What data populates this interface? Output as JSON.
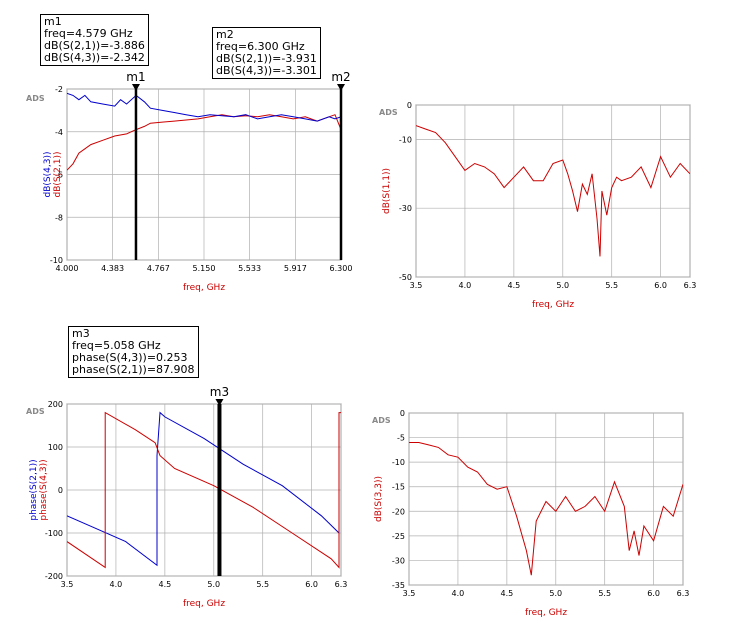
{
  "ads_label": "ADS",
  "colors": {
    "s21": "#cc0000",
    "s43": "#0000cc",
    "s11": "#cc0000",
    "s33": "#cc0000"
  },
  "chart_data": [
    {
      "type": "line",
      "xlabel": "freq, GHz",
      "ylabel_lines": [
        {
          "text": "dB(S(4,3))",
          "color": "#0000cc"
        },
        {
          "text": "dB(S(2,1))",
          "color": "#cc0000"
        }
      ],
      "xlim": [
        4.0,
        6.3
      ],
      "ylim": [
        -10,
        -2
      ],
      "xticks": [
        "4.000",
        "4.383",
        "4.767",
        "5.150",
        "5.533",
        "5.917",
        "6.300"
      ],
      "yticks": [
        "-2",
        "-4",
        "-6",
        "-8",
        "-10"
      ],
      "series": [
        {
          "name": "dB(S(2,1))",
          "x": [
            4.0,
            4.05,
            4.1,
            4.15,
            4.2,
            4.3,
            4.4,
            4.5,
            4.58,
            4.65,
            4.7,
            4.8,
            4.9,
            5.0,
            5.1,
            5.2,
            5.3,
            5.4,
            5.5,
            5.6,
            5.7,
            5.8,
            5.9,
            6.0,
            6.1,
            6.2,
            6.25,
            6.3
          ],
          "y": [
            -5.8,
            -5.5,
            -5.0,
            -4.8,
            -4.6,
            -4.4,
            -4.2,
            -4.1,
            -3.9,
            -3.75,
            -3.6,
            -3.55,
            -3.5,
            -3.45,
            -3.4,
            -3.3,
            -3.2,
            -3.3,
            -3.25,
            -3.3,
            -3.2,
            -3.3,
            -3.4,
            -3.3,
            -3.5,
            -3.3,
            -3.2,
            -3.9
          ]
        },
        {
          "name": "dB(S(4,3))",
          "x": [
            4.0,
            4.05,
            4.1,
            4.15,
            4.2,
            4.3,
            4.4,
            4.45,
            4.5,
            4.58,
            4.65,
            4.7,
            4.8,
            4.9,
            5.0,
            5.1,
            5.2,
            5.3,
            5.4,
            5.5,
            5.6,
            5.7,
            5.8,
            5.9,
            6.0,
            6.1,
            6.2,
            6.25,
            6.3
          ],
          "y": [
            -2.2,
            -2.3,
            -2.5,
            -2.3,
            -2.6,
            -2.7,
            -2.8,
            -2.5,
            -2.7,
            -2.3,
            -2.6,
            -2.9,
            -3.0,
            -3.1,
            -3.2,
            -3.3,
            -3.2,
            -3.25,
            -3.3,
            -3.2,
            -3.4,
            -3.3,
            -3.2,
            -3.3,
            -3.4,
            -3.5,
            -3.3,
            -3.4,
            -3.3
          ]
        }
      ],
      "markers": [
        {
          "name": "m1",
          "x": 4.579,
          "lines": [
            "m1",
            "freq=4.579 GHz",
            "dB(S(2,1))=-3.886",
            "dB(S(4,3))=-2.342"
          ]
        },
        {
          "name": "m2",
          "x": 6.3,
          "lines": [
            "m2",
            "freq=6.300 GHz",
            "dB(S(2,1))=-3.931",
            "dB(S(4,3))=-3.301"
          ]
        }
      ]
    },
    {
      "type": "line",
      "xlabel": "freq, GHz",
      "ylabel_lines": [
        {
          "text": "dB(S(1,1))",
          "color": "#cc0000"
        }
      ],
      "xlim": [
        3.5,
        6.3
      ],
      "ylim": [
        -50,
        0
      ],
      "xticks": [
        "3.5",
        "4.0",
        "4.5",
        "5.0",
        "5.5",
        "6.0",
        "6.3"
      ],
      "yticks": [
        "0",
        "-10",
        "-30",
        "-50"
      ],
      "series": [
        {
          "name": "dB(S(1,1))",
          "x": [
            3.5,
            3.6,
            3.7,
            3.8,
            3.9,
            4.0,
            4.1,
            4.2,
            4.3,
            4.4,
            4.5,
            4.6,
            4.7,
            4.8,
            4.9,
            5.0,
            5.05,
            5.1,
            5.15,
            5.2,
            5.25,
            5.3,
            5.35,
            5.38,
            5.4,
            5.45,
            5.5,
            5.55,
            5.6,
            5.7,
            5.8,
            5.9,
            6.0,
            6.1,
            6.2,
            6.3
          ],
          "y": [
            -6,
            -7,
            -8,
            -11,
            -15,
            -19,
            -17,
            -18,
            -20,
            -24,
            -21,
            -18,
            -22,
            -22,
            -17,
            -16,
            -20,
            -25,
            -31,
            -23,
            -26,
            -20,
            -33,
            -44,
            -25,
            -32,
            -24,
            -21,
            -22,
            -21,
            -18,
            -24,
            -15,
            -21,
            -17,
            -20
          ]
        }
      ],
      "markers": []
    },
    {
      "type": "line",
      "xlabel": "freq, GHz",
      "ylabel_lines": [
        {
          "text": "phase(S(2,1))",
          "color": "#0000cc"
        },
        {
          "text": "phase(S(4,3))",
          "color": "#cc0000"
        }
      ],
      "xlim": [
        3.5,
        6.3
      ],
      "ylim": [
        -200,
        200
      ],
      "xticks": [
        "3.5",
        "4.0",
        "4.5",
        "5.0",
        "5.5",
        "6.0",
        "6.3"
      ],
      "yticks": [
        "200",
        "100",
        "0",
        "-100",
        "-200"
      ],
      "series": [
        {
          "name": "phase(S(2,1))",
          "x": [
            3.5,
            3.8,
            4.1,
            4.42,
            4.42,
            4.45,
            4.5,
            4.9,
            5.3,
            5.7,
            6.1,
            6.28
          ],
          "y": [
            -60,
            -90,
            -120,
            -175,
            80,
            180,
            170,
            120,
            60,
            10,
            -60,
            -100
          ]
        },
        {
          "name": "phase(S(4,3))",
          "x": [
            3.5,
            3.89,
            3.89,
            4.2,
            4.4,
            4.45,
            4.6,
            5.0,
            5.4,
            5.8,
            6.2,
            6.28,
            6.28,
            6.3
          ],
          "y": [
            -120,
            -180,
            180,
            140,
            110,
            80,
            50,
            10,
            -40,
            -100,
            -160,
            -180,
            180,
            180
          ]
        }
      ],
      "markers": [
        {
          "name": "m3",
          "x": 5.058,
          "lines": [
            "m3",
            "freq=5.058 GHz",
            "phase(S(4,3))=0.253",
            "phase(S(2,1))=87.908"
          ]
        }
      ]
    },
    {
      "type": "line",
      "xlabel": "freq, GHz",
      "ylabel_lines": [
        {
          "text": "dB(S(3,3))",
          "color": "#cc0000"
        }
      ],
      "xlim": [
        3.5,
        6.3
      ],
      "ylim": [
        -35,
        0
      ],
      "xticks": [
        "3.5",
        "4.0",
        "4.5",
        "5.0",
        "5.5",
        "6.0",
        "6.3"
      ],
      "yticks": [
        "0",
        "-5",
        "-10",
        "-15",
        "-20",
        "-25",
        "-30",
        "-35"
      ],
      "series": [
        {
          "name": "dB(S(3,3))",
          "x": [
            3.5,
            3.6,
            3.7,
            3.8,
            3.9,
            4.0,
            4.1,
            4.2,
            4.3,
            4.4,
            4.5,
            4.6,
            4.7,
            4.75,
            4.8,
            4.9,
            5.0,
            5.1,
            5.2,
            5.3,
            5.4,
            5.5,
            5.6,
            5.7,
            5.75,
            5.8,
            5.85,
            5.9,
            6.0,
            6.1,
            6.2,
            6.3
          ],
          "y": [
            -6,
            -6,
            -6.5,
            -7,
            -8.5,
            -9,
            -11,
            -12,
            -14.5,
            -15.5,
            -15,
            -21,
            -28,
            -33,
            -22,
            -18,
            -20,
            -17,
            -20,
            -19,
            -17,
            -20,
            -14,
            -19,
            -28,
            -24,
            -29,
            -23,
            -26,
            -19,
            -21,
            -14.5
          ]
        }
      ],
      "markers": []
    }
  ]
}
